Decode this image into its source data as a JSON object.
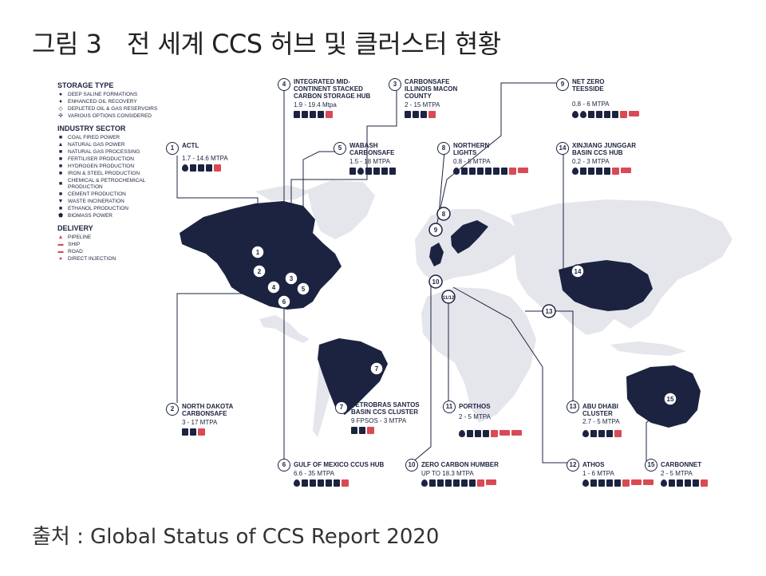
{
  "figure": {
    "title": "그림 3　전 세계 CCS 허브 및 클러스터 현황",
    "source": "출처 : Global Status of CCS Report 2020"
  },
  "legend": {
    "storage_type": {
      "heading": "STORAGE TYPE",
      "items": [
        "DEEP SALINE FORMATIONS",
        "ENHANCED OIL RECOVERY",
        "DEPLETED OIL & GAS RESERVOIRS",
        "VARIOUS OPTIONS CONSIDERED"
      ]
    },
    "industry_sector": {
      "heading": "INDUSTRY SECTOR",
      "items": [
        "COAL FIRED POWER",
        "NATURAL GAS POWER",
        "NATURAL GAS PROCESSING",
        "FERTILISER PRODUCTION",
        "HYDROGEN PRODUCTION",
        "IRON & STEEL PRODUCTION",
        "CHEMICAL & PETROCHEMICAL PRODUCTION",
        "CEMENT PRODUCTION",
        "WASTE INCINERATION",
        "ETHANOL PRODUCTION",
        "BIOMASS POWER"
      ]
    },
    "delivery": {
      "heading": "DELIVERY",
      "items": [
        "PIPELINE",
        "SHIP",
        "ROAD",
        "DIRECT INJECTION"
      ]
    }
  },
  "hubs": [
    {
      "num": "1",
      "name": "ACTL",
      "capacity": "1.7 - 14.6 MTPA",
      "icons": 5
    },
    {
      "num": "2",
      "name": "NORTH DAKOTA\nCARBONSAFE",
      "capacity": "3 - 17 MTPA",
      "icons": 3
    },
    {
      "num": "3",
      "name": "CARBONSAFE\nILLINOIS MACON\nCOUNTY",
      "capacity": "2 - 15 MTPA",
      "icons": 4
    },
    {
      "num": "4",
      "name": "INTEGRATED MID-\nCONTINENT STACKED\nCARBON STORAGE HUB",
      "capacity": "1.9 - 19.4 Mtpa",
      "icons": 5
    },
    {
      "num": "5",
      "name": "WABASH\nCARBONSAFE",
      "capacity": "1.5 - 18 MTPA",
      "icons": 6
    },
    {
      "num": "6",
      "name": "GULF OF MEXICO CCUS HUB",
      "capacity": "6.6 - 35 MTPA",
      "icons": 7
    },
    {
      "num": "7",
      "name": "PETROBRAS SANTOS\nBASIN CCS CLUSTER",
      "capacity": "9 FPSOS - 3 MTPA",
      "icons": 3
    },
    {
      "num": "8",
      "name": "NORTHERN\nLIGHTS",
      "capacity": "0.8 - 5 MTPA",
      "icons": 9
    },
    {
      "num": "9",
      "name": "NET ZERO\nTEESSIDE",
      "capacity": "0.8 - 6 MTPA",
      "icons": 8
    },
    {
      "num": "10",
      "name": "ZERO CARBON HUMBER",
      "capacity": "UP TO 18.3 MTPA",
      "icons": 9
    },
    {
      "num": "11",
      "name": "PORTHOS",
      "capacity": "2 - 5 MTPA",
      "icons": 7
    },
    {
      "num": "12",
      "name": "ATHOS",
      "capacity": "1 - 6 MTPA",
      "icons": 8
    },
    {
      "num": "13",
      "name": "ABU DHABI\nCLUSTER",
      "capacity": "2.7 - 5 MTPA",
      "icons": 5
    },
    {
      "num": "14",
      "name": "XINJIANG JUNGGAR\nBASIN CCS HUB",
      "capacity": "0.2 - 3 MTPA",
      "icons": 7
    },
    {
      "num": "15",
      "name": "CARBONNET",
      "capacity": "2 - 5 MTPA",
      "icons": 6
    }
  ],
  "colors": {
    "navy": "#1c2340",
    "land_grey": "#e6e8ee",
    "accent_red": "#d94a55"
  }
}
